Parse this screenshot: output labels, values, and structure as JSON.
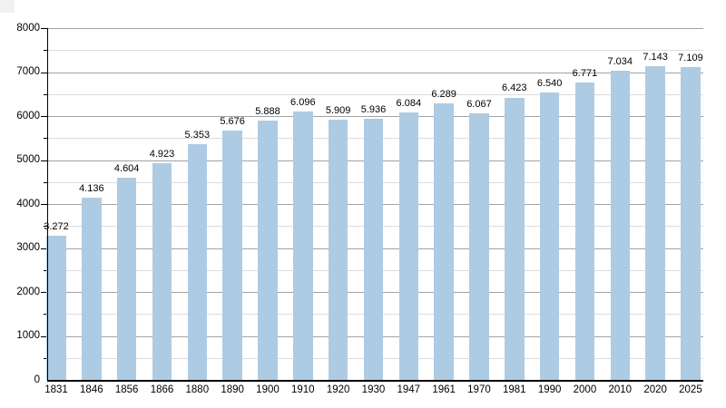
{
  "chart_data": {
    "type": "bar",
    "title": "",
    "xlabel": "",
    "ylabel": "",
    "categories": [
      "1831",
      "1846",
      "1856",
      "1866",
      "1880",
      "1890",
      "1900",
      "1910",
      "1920",
      "1930",
      "1947",
      "1961",
      "1970",
      "1981",
      "1990",
      "2000",
      "2010",
      "2020",
      "2025"
    ],
    "values": [
      3272,
      4136,
      4604,
      4923,
      5353,
      5676,
      5888,
      6096,
      5909,
      5936,
      6084,
      6289,
      6067,
      6423,
      6540,
      6771,
      7034,
      7143,
      7109
    ],
    "value_labels": [
      "3.272",
      "4.136",
      "4.604",
      "4.923",
      "5.353",
      "5.676",
      "5.888",
      "6.096",
      "5.909",
      "5.936",
      "6.084",
      "6.289",
      "6.067",
      "6.423",
      "6.540",
      "6.771",
      "7.034",
      "7.143",
      "7.109"
    ],
    "ylim": [
      0,
      8000
    ],
    "y_major_tick_step": 1000,
    "y_minor_tick_step": 500,
    "y_major_tick_labels": [
      "0",
      "1000",
      "2000",
      "3000",
      "4000",
      "5000",
      "6000",
      "7000",
      "8000"
    ],
    "grid": true,
    "legend": "none",
    "bar_color": "#aecbe4",
    "major_grid_color": "#a2a2a2",
    "minor_grid_color": "#dcdcdc",
    "axis_color": "#000000",
    "text_color": "#000000"
  }
}
